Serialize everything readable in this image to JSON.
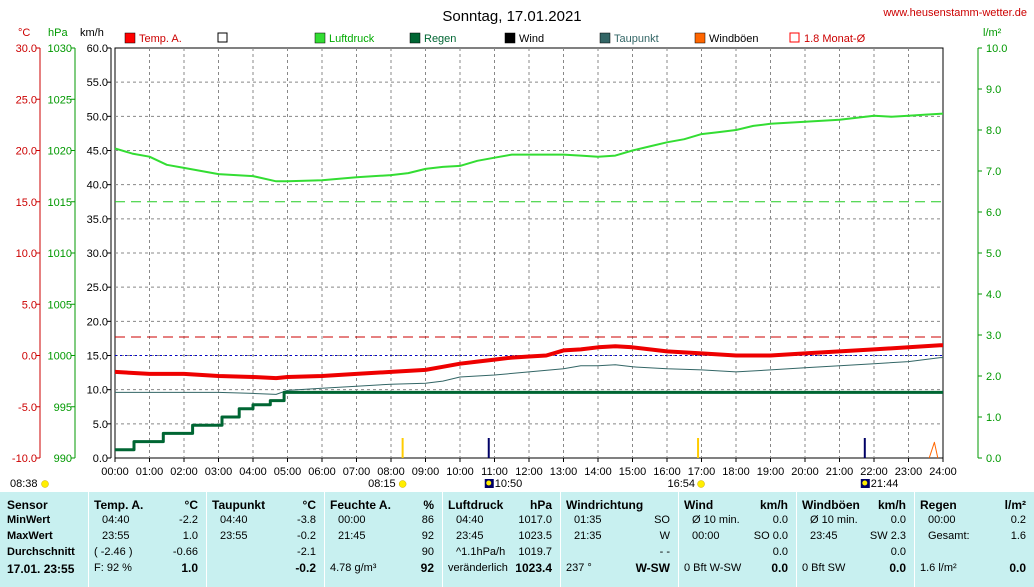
{
  "title": "Sonntag, 17.01.2021",
  "website": "www.heusenstamm-wetter.de",
  "units": {
    "temp": "°C",
    "pressure": "hPa",
    "wind": "km/h",
    "rain": "l/m²"
  },
  "legend": [
    {
      "label": "Temp. A.",
      "color": "#ff0000",
      "style": "filled"
    },
    {
      "label": "",
      "color": "#ffffff",
      "style": "empty"
    },
    {
      "label": "Luftdruck",
      "color": "#33dd33",
      "style": "filled"
    },
    {
      "label": "Regen",
      "color": "#006633",
      "style": "filled"
    },
    {
      "label": "Wind",
      "color": "#000000",
      "style": "filled"
    },
    {
      "label": "Taupunkt",
      "color": "#336666",
      "style": "filled"
    },
    {
      "label": "Windböen",
      "color": "#ff6600",
      "style": "filled"
    },
    {
      "label": "1.8 Monat-Ø",
      "color": "#ff0000",
      "style": "outline"
    }
  ],
  "markers": {
    "sunrise": "08:38",
    "sunrise_axis": "08:15",
    "moon_set": "10:50",
    "sunset": "16:54",
    "moon_rise": "21:44"
  },
  "chart_data": {
    "type": "line",
    "x_ticks": [
      "00:00",
      "01:00",
      "02:00",
      "03:00",
      "04:00",
      "05:00",
      "06:00",
      "07:00",
      "08:00",
      "09:00",
      "10:00",
      "11:00",
      "12:00",
      "13:00",
      "14:00",
      "15:00",
      "16:00",
      "17:00",
      "18:00",
      "19:00",
      "20:00",
      "21:00",
      "22:00",
      "23:00",
      "24:00"
    ],
    "axes": {
      "temp": {
        "ticks": [
          "30.0",
          "25.0",
          "20.0",
          "15.0",
          "10.0",
          "5.0",
          "0.0",
          "-5.0",
          "-10.0"
        ],
        "range": [
          -10,
          30
        ]
      },
      "pressure": {
        "ticks": [
          "1030",
          "1025",
          "1020",
          "1015",
          "1010",
          "1005",
          "1000",
          "995",
          "990"
        ],
        "range": [
          990,
          1030
        ]
      },
      "wind": {
        "ticks": [
          "60.0",
          "55.0",
          "50.0",
          "45.0",
          "40.0",
          "35.0",
          "30.0",
          "25.0",
          "20.0",
          "15.0",
          "10.0",
          "5.0",
          "0.0"
        ],
        "range": [
          0,
          60
        ]
      },
      "rain": {
        "ticks": [
          "10.0",
          "9.0",
          "8.0",
          "7.0",
          "6.0",
          "5.0",
          "4.0",
          "3.0",
          "2.0",
          "1.0",
          "0.0"
        ],
        "range": [
          0,
          10
        ]
      }
    },
    "reference_lines": {
      "pressure_avg": 1015,
      "temp_monthly_avg": 1.8,
      "temp_zero": 0
    },
    "series": [
      {
        "name": "Luftdruck",
        "axis": "pressure",
        "color": "#33dd33",
        "x": [
          0,
          0.5,
          1,
          1.5,
          2,
          3,
          4,
          4.67,
          5,
          6,
          7,
          8,
          8.5,
          9,
          9.5,
          10,
          10.5,
          11,
          11.5,
          12,
          13,
          13.5,
          14,
          14.5,
          15,
          15.5,
          16,
          16.5,
          17,
          17.5,
          18,
          18.5,
          19,
          20,
          20.5,
          21,
          21.5,
          22,
          22.5,
          23,
          23.5,
          24
        ],
        "y": [
          1020.2,
          1019.7,
          1019.4,
          1018.6,
          1018.3,
          1017.7,
          1017.5,
          1017.0,
          1017.0,
          1017.1,
          1017.4,
          1017.6,
          1017.8,
          1018.2,
          1018.4,
          1018.5,
          1019.0,
          1019.3,
          1019.6,
          1019.6,
          1019.6,
          1019.5,
          1019.4,
          1019.5,
          1020.0,
          1020.4,
          1020.8,
          1021.1,
          1021.6,
          1021.8,
          1022.0,
          1022.4,
          1022.6,
          1022.8,
          1022.9,
          1023.0,
          1023.2,
          1023.4,
          1023.3,
          1023.4,
          1023.5,
          1023.6
        ]
      },
      {
        "name": "Temp. A.",
        "axis": "temp",
        "color": "#ee0000",
        "x": [
          0,
          1,
          2,
          3,
          4,
          4.67,
          5,
          6,
          7,
          8,
          9,
          9.5,
          10,
          10.5,
          11,
          11.5,
          12,
          12.5,
          13,
          13.5,
          14,
          14.5,
          15,
          16,
          17,
          18,
          19,
          20,
          21,
          22,
          23,
          23.92,
          24
        ],
        "y": [
          -1.6,
          -1.8,
          -1.8,
          -2.0,
          -2.1,
          -2.2,
          -2.1,
          -2.0,
          -1.8,
          -1.6,
          -1.4,
          -1.1,
          -0.8,
          -0.6,
          -0.4,
          -0.2,
          -0.1,
          0.0,
          0.5,
          0.6,
          0.8,
          0.9,
          0.8,
          0.4,
          0.2,
          0.0,
          0.0,
          0.2,
          0.4,
          0.6,
          0.8,
          1.0,
          1.0
        ]
      },
      {
        "name": "Taupunkt",
        "axis": "temp",
        "color": "#336666",
        "x": [
          0,
          1,
          2,
          3,
          4,
          4.67,
          5,
          6,
          7,
          8,
          9,
          9.5,
          10,
          11,
          12,
          13,
          13.5,
          14,
          14.5,
          15,
          16,
          17,
          18,
          19,
          20,
          21,
          22,
          23,
          23.92,
          24
        ],
        "y": [
          -3.6,
          -3.6,
          -3.6,
          -3.6,
          -3.7,
          -3.8,
          -3.4,
          -3.2,
          -3.0,
          -2.8,
          -2.7,
          -2.5,
          -2.1,
          -1.9,
          -1.6,
          -1.3,
          -1.0,
          -1.0,
          -0.9,
          -1.1,
          -1.3,
          -1.4,
          -1.6,
          -1.4,
          -1.2,
          -1.0,
          -0.8,
          -0.6,
          -0.2,
          -0.2
        ]
      },
      {
        "name": "Regen",
        "axis": "rain",
        "color": "#006633",
        "step": true,
        "x": [
          0,
          0.55,
          1.4,
          2.25,
          3.1,
          3.6,
          4.0,
          4.5,
          4.9,
          24
        ],
        "y": [
          0.2,
          0.4,
          0.6,
          0.8,
          1.0,
          1.2,
          1.3,
          1.4,
          1.6,
          1.6
        ]
      },
      {
        "name": "Windböen",
        "axis": "wind",
        "color": "#ff6600",
        "x": [
          23.6,
          23.75,
          23.85
        ],
        "y": [
          0,
          2.3,
          0
        ]
      }
    ]
  },
  "table": {
    "row_labels": [
      "Sensor",
      "MinWert",
      "MaxWert",
      "Durchschnitt",
      "17.01. 23:55"
    ],
    "columns": [
      {
        "header": "Temp. A.",
        "unit": "°C",
        "rows": [
          [
            "04:40",
            "-2.2"
          ],
          [
            "23:55",
            "1.0"
          ],
          [
            "( -2.46 )",
            "-0.66"
          ],
          [
            "F: 92 %",
            "1.0"
          ]
        ]
      },
      {
        "header": "Taupunkt",
        "unit": "°C",
        "rows": [
          [
            "04:40",
            "-3.8"
          ],
          [
            "23:55",
            "-0.2"
          ],
          [
            "",
            "-2.1"
          ],
          [
            "",
            "-0.2"
          ]
        ]
      },
      {
        "header": "Feuchte A.",
        "unit": "%",
        "rows": [
          [
            "00:00",
            "86"
          ],
          [
            "21:45",
            "92"
          ],
          [
            "",
            "90"
          ],
          [
            "4.78 g/m³",
            "92"
          ]
        ]
      },
      {
        "header": "Luftdruck",
        "unit": "hPa",
        "rows": [
          [
            "04:40",
            "1017.0"
          ],
          [
            "23:45",
            "1023.5"
          ],
          [
            "^1.1hPa/h",
            "1019.7"
          ],
          [
            "veränderlich",
            "1023.4"
          ]
        ]
      },
      {
        "header": "Windrichtung",
        "unit": "",
        "rows": [
          [
            "01:35",
            "SO"
          ],
          [
            "21:35",
            "W"
          ],
          [
            "",
            "- -"
          ],
          [
            "237 °",
            "W-SW"
          ]
        ]
      },
      {
        "header": "Wind",
        "unit": "km/h",
        "rows": [
          [
            "Ø 10 min.",
            "0.0"
          ],
          [
            "00:00",
            "SO 0.0"
          ],
          [
            "",
            "0.0"
          ],
          [
            "0 Bft W-SW",
            "0.0"
          ]
        ]
      },
      {
        "header": "Windböen",
        "unit": "km/h",
        "rows": [
          [
            "Ø 10 min.",
            "0.0"
          ],
          [
            "23:45",
            "SW 2.3"
          ],
          [
            "",
            "0.0"
          ],
          [
            "0 Bft SW",
            "0.0"
          ]
        ]
      },
      {
        "header": "Regen",
        "unit": "l/m²",
        "rows": [
          [
            "00:00",
            "0.2"
          ],
          [
            "Gesamt:",
            "1.6"
          ],
          [
            "",
            ""
          ],
          [
            "1.6 l/m²",
            "0.0"
          ]
        ]
      }
    ]
  }
}
